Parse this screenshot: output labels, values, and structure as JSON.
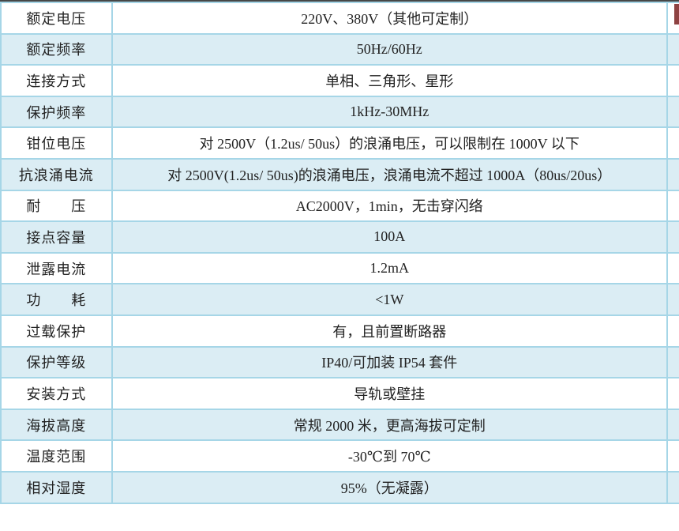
{
  "table": {
    "rows": [
      {
        "label": "额定电压",
        "value": "220V、380V（其他可定制）"
      },
      {
        "label": "额定频率",
        "value": "50Hz/60Hz"
      },
      {
        "label": "连接方式",
        "value": "单相、三角形、星形"
      },
      {
        "label": "保护频率",
        "value": "1kHz-30MHz"
      },
      {
        "label": "钳位电压",
        "value": "对 2500V（1.2us/ 50us）的浪涌电压，可以限制在 1000V 以下"
      },
      {
        "label": "抗浪涌电流",
        "value": "对 2500V(1.2us/ 50us)的浪涌电压，浪涌电流不超过 1000A（80us/20us）"
      },
      {
        "label": "耐　　压",
        "value": "AC2000V，1min，无击穿闪络"
      },
      {
        "label": "接点容量",
        "value": "100A"
      },
      {
        "label": "泄露电流",
        "value": "1.2mA"
      },
      {
        "label": "功　　耗",
        "value": "<1W"
      },
      {
        "label": "过载保护",
        "value": "有，且前置断路器"
      },
      {
        "label": "保护等级",
        "value": "IP40/可加装 IP54 套件"
      },
      {
        "label": "安装方式",
        "value": "导轨或壁挂"
      },
      {
        "label": "海拔高度",
        "value": "常规 2000 米，更高海拔可定制"
      },
      {
        "label": "温度范围",
        "value": "-30℃到 70℃"
      },
      {
        "label": "相对湿度",
        "value": "95%（无凝露）"
      }
    ]
  },
  "colors": {
    "border": "#a6d6e7",
    "alt_row_fill": "#dbedf4",
    "row_fill": "#ffffff",
    "top_edge": "#474747",
    "scrollbar_thumb": "#8e4242",
    "text": "#222222"
  }
}
